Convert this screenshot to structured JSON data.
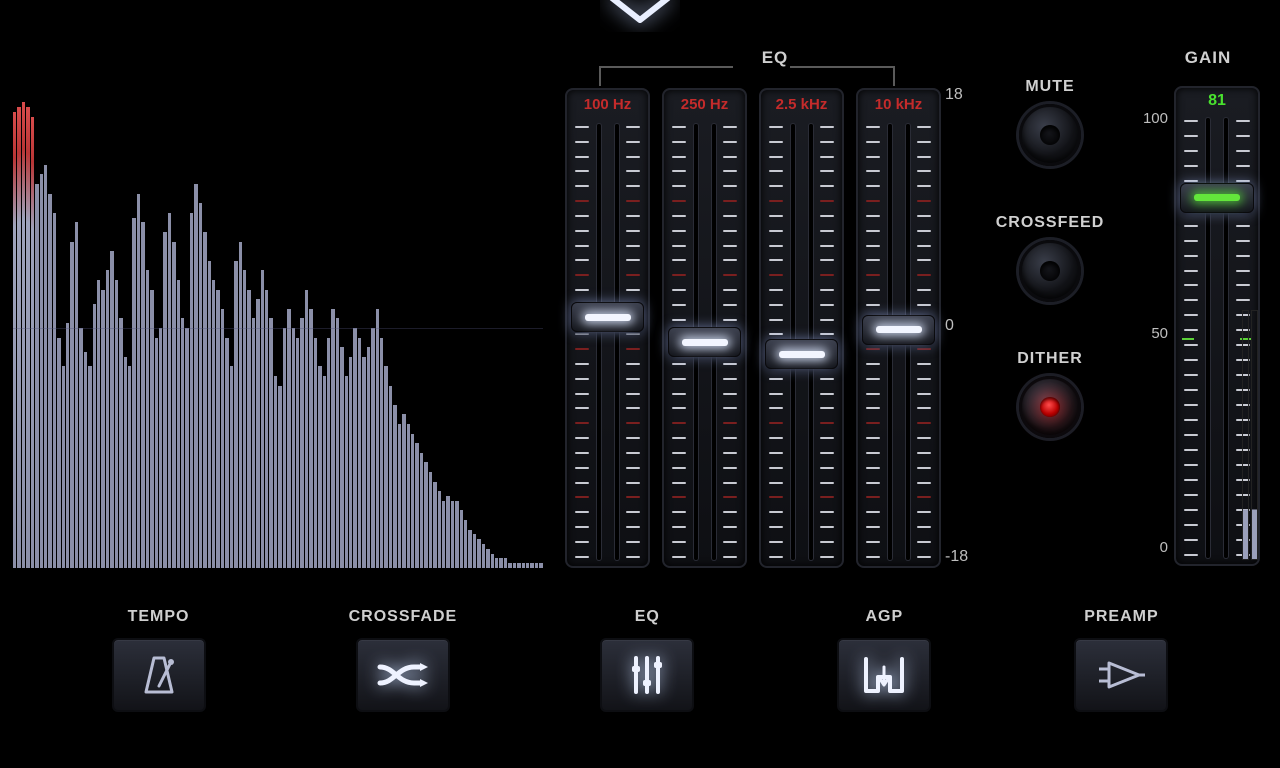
{
  "colors": {
    "bg": "#000000",
    "panel": "#1a1c22",
    "tick": "#c8cad2",
    "tick_red": "#7a1f1f",
    "freq_label": "#c42b2b",
    "glow": "#e6ecff",
    "green": "#49e22e"
  },
  "spectrum": {
    "bars": [
      95,
      96,
      97,
      96,
      94,
      80,
      82,
      84,
      78,
      74,
      48,
      42,
      51,
      68,
      72,
      50,
      45,
      42,
      55,
      60,
      58,
      62,
      66,
      60,
      52,
      44,
      42,
      73,
      78,
      72,
      62,
      58,
      48,
      50,
      70,
      74,
      68,
      60,
      52,
      50,
      74,
      80,
      76,
      70,
      64,
      60,
      58,
      54,
      48,
      42,
      64,
      68,
      62,
      58,
      52,
      56,
      62,
      58,
      52,
      40,
      38,
      50,
      54,
      50,
      48,
      52,
      58,
      54,
      48,
      42,
      40,
      48,
      54,
      52,
      46,
      40,
      44,
      50,
      48,
      44,
      46,
      50,
      54,
      48,
      42,
      38,
      34,
      30,
      32,
      30,
      28,
      26,
      24,
      22,
      20,
      18,
      16,
      14,
      15,
      14,
      14,
      12,
      10,
      8,
      7,
      6,
      5,
      4,
      3,
      2,
      2,
      2,
      1,
      1,
      1,
      1,
      1,
      1,
      1,
      1
    ],
    "peak_threshold_pct": 85
  },
  "eq": {
    "title": "EQ",
    "scale": {
      "max": "18",
      "mid": "0",
      "min": "-18"
    },
    "ticks_per_side": 30,
    "red_tick_interval": 5,
    "bands": [
      {
        "freq": "100 Hz",
        "value": 2
      },
      {
        "freq": "250 Hz",
        "value": 0
      },
      {
        "freq": "2.5 kHz",
        "value": -1
      },
      {
        "freq": "10 kHz",
        "value": 1
      }
    ]
  },
  "knobs": {
    "mute": {
      "label": "MUTE",
      "active": false
    },
    "crossfeed": {
      "label": "CROSSFEED",
      "active": false
    },
    "dither": {
      "label": "DITHER",
      "active": true
    }
  },
  "gain": {
    "title": "GAIN",
    "scale": {
      "max": "100",
      "mid": "50",
      "min": "0"
    },
    "value": 81,
    "ticks_per_side": 30
  },
  "bottom_buttons": {
    "tempo": {
      "label": "TEMPO"
    },
    "crossfade": {
      "label": "CROSSFADE"
    },
    "eq": {
      "label": "EQ"
    },
    "agp": {
      "label": "AGP"
    },
    "preamp": {
      "label": "PREAMP"
    }
  }
}
